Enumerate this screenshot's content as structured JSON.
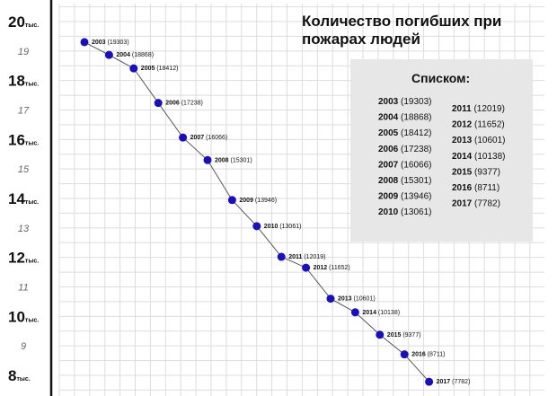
{
  "chart_data": {
    "type": "line",
    "title": "Количество погибших при пожарах людей",
    "ylim": [
      7.8,
      20.2
    ],
    "grid": true,
    "y_ticks": [
      {
        "value": 20,
        "label": "20",
        "suffix": "тыс.",
        "major": true
      },
      {
        "value": 19,
        "label": "19",
        "major": false
      },
      {
        "value": 18,
        "label": "18",
        "suffix": "тыс.",
        "major": true
      },
      {
        "value": 17,
        "label": "17",
        "major": false
      },
      {
        "value": 16,
        "label": "16",
        "suffix": "тыс.",
        "major": true
      },
      {
        "value": 15,
        "label": "15",
        "major": false
      },
      {
        "value": 14,
        "label": "14",
        "suffix": "тыс.",
        "major": true
      },
      {
        "value": 13,
        "label": "13",
        "major": false
      },
      {
        "value": 12,
        "label": "12",
        "suffix": "тыс.",
        "major": true
      },
      {
        "value": 11,
        "label": "11",
        "major": false
      },
      {
        "value": 10,
        "label": "10",
        "suffix": "тыс.",
        "major": true
      },
      {
        "value": 9,
        "label": "9",
        "major": false
      },
      {
        "value": 8,
        "label": "8",
        "suffix": "тыс.",
        "major": true
      }
    ],
    "points": [
      {
        "year": "2003",
        "value": 19303,
        "label": "(19303)"
      },
      {
        "year": "2004",
        "value": 18868,
        "label": "(18868)"
      },
      {
        "year": "2005",
        "value": 18412,
        "label": "(18412)"
      },
      {
        "year": "2006",
        "value": 17238,
        "label": "(17238)"
      },
      {
        "year": "2007",
        "value": 16066,
        "label": "(16066)"
      },
      {
        "year": "2008",
        "value": 15301,
        "label": "(15301)"
      },
      {
        "year": "2009",
        "value": 13946,
        "label": "(13946)"
      },
      {
        "year": "2010",
        "value": 13061,
        "label": "(13061)"
      },
      {
        "year": "2011",
        "value": 12019,
        "label": "(12019)"
      },
      {
        "year": "2012",
        "value": 11652,
        "label": "(11652)"
      },
      {
        "year": "2013",
        "value": 10601,
        "label": "(10601)"
      },
      {
        "year": "2014",
        "value": 10138,
        "label": "(10138)"
      },
      {
        "year": "2015",
        "value": 9377,
        "label": "(9377)"
      },
      {
        "year": "2016",
        "value": 8711,
        "label": "(8711)"
      },
      {
        "year": "2017",
        "value": 7782,
        "label": "(7782)"
      }
    ],
    "list": {
      "title": "Списком:",
      "column_left": [
        {
          "year": "2003",
          "label": "(19303)"
        },
        {
          "year": "2004",
          "label": "(18868)"
        },
        {
          "year": "2005",
          "label": "(18412)"
        },
        {
          "year": "2006",
          "label": "(17238)"
        },
        {
          "year": "2007",
          "label": "(16066)"
        },
        {
          "year": "2008",
          "label": "(15301)"
        },
        {
          "year": "2009",
          "label": "(13946)"
        },
        {
          "year": "2010",
          "label": "(13061)"
        }
      ],
      "column_right": [
        {
          "year": "2011",
          "label": "(12019)"
        },
        {
          "year": "2012",
          "label": "(11652)"
        },
        {
          "year": "2013",
          "label": "(10601)"
        },
        {
          "year": "2014",
          "label": "(10138)"
        },
        {
          "year": "2015",
          "label": "(9377)"
        },
        {
          "year": "2016",
          "label": "(8711)"
        },
        {
          "year": "2017",
          "label": "(7782)"
        }
      ]
    },
    "colors": {
      "marker": "#1a0fb8",
      "line": "#555555",
      "grid": "#dddddd",
      "axis": "#111111",
      "list_bg": "#e7e7e7"
    }
  }
}
